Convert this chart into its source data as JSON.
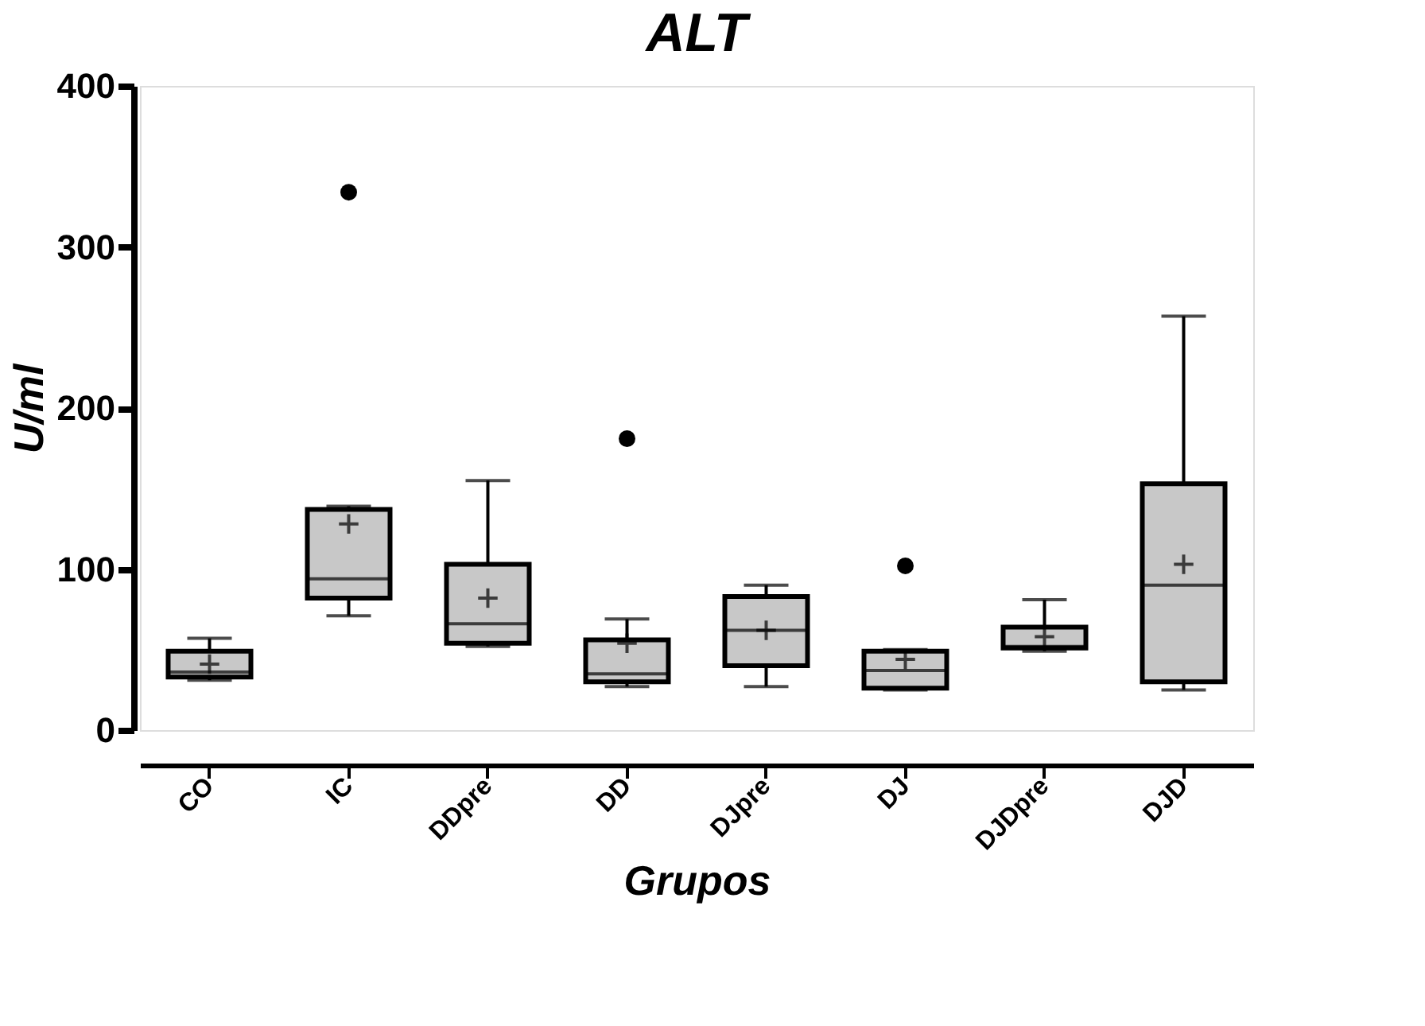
{
  "chart_data": {
    "type": "box",
    "title": "ALT",
    "xlabel": "Grupos",
    "ylabel": "U/ml",
    "categories": [
      "CO",
      "IC",
      "DDpre",
      "DD",
      "DJpre",
      "DJ",
      "DJDpre",
      "DJD"
    ],
    "ylim": [
      0,
      400
    ],
    "yticks": [
      0,
      100,
      200,
      300,
      400
    ],
    "grid": false,
    "series": [
      {
        "color": "#c8c8c8",
        "boxes": [
          {
            "low": 31,
            "q1": 33,
            "median": 36,
            "q3": 49,
            "high": 57,
            "mean": 41
          },
          {
            "low": 71,
            "q1": 82,
            "median": 94,
            "q3": 137,
            "high": 139,
            "mean": 128,
            "outliers": [
              334
            ]
          },
          {
            "low": 52,
            "q1": 54,
            "median": 66,
            "q3": 103,
            "high": 155,
            "mean": 82
          },
          {
            "low": 27,
            "q1": 30,
            "median": 35,
            "q3": 56,
            "high": 69,
            "mean": 54,
            "outliers": [
              181
            ]
          },
          {
            "low": 27,
            "q1": 40,
            "median": 62,
            "q3": 83,
            "high": 90,
            "mean": 62
          },
          {
            "low": 25,
            "q1": 26,
            "median": 37,
            "q3": 49,
            "high": 50,
            "mean": 44,
            "outliers": [
              102
            ]
          },
          {
            "low": 49,
            "q1": 51,
            "median": 52,
            "q3": 64,
            "high": 81,
            "mean": 58
          },
          {
            "low": 25,
            "q1": 30,
            "median": 90,
            "q3": 153,
            "high": 257,
            "mean": 103
          }
        ]
      }
    ]
  }
}
